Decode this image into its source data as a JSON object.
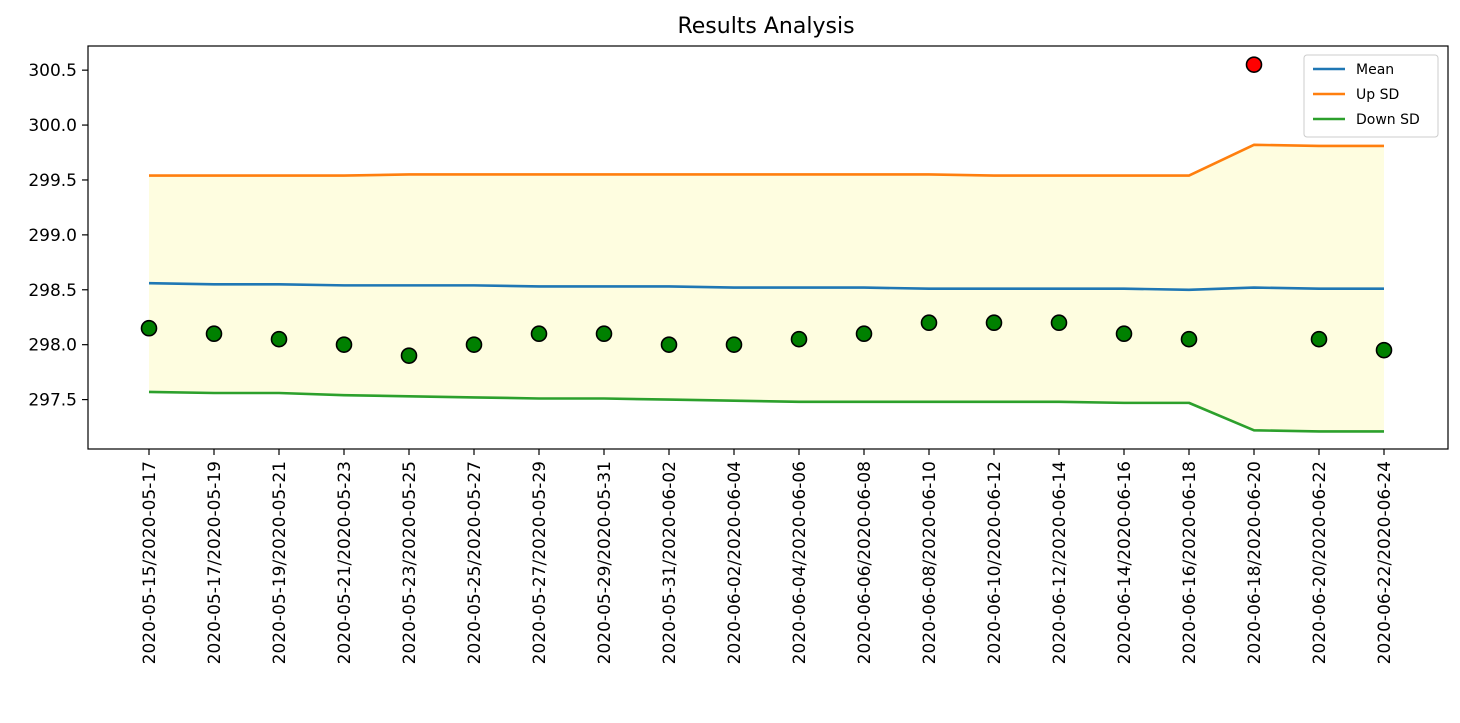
{
  "chart_data": {
    "type": "line",
    "title": "Results Analysis",
    "xlabel": "",
    "ylabel": "",
    "ylim": [
      297.05,
      300.72
    ],
    "yticks": [
      297.5,
      298.0,
      298.5,
      299.0,
      299.5,
      300.0,
      300.5
    ],
    "ytick_labels": [
      "297.5",
      "298.0",
      "298.5",
      "299.0",
      "299.5",
      "300.0",
      "300.5"
    ],
    "categories": [
      "2020-05-15/2020-05-17",
      "2020-05-17/2020-05-19",
      "2020-05-19/2020-05-21",
      "2020-05-21/2020-05-23",
      "2020-05-23/2020-05-25",
      "2020-05-25/2020-05-27",
      "2020-05-27/2020-05-29",
      "2020-05-29/2020-05-31",
      "2020-05-31/2020-06-02",
      "2020-06-02/2020-06-04",
      "2020-06-04/2020-06-06",
      "2020-06-06/2020-06-08",
      "2020-06-08/2020-06-10",
      "2020-06-10/2020-06-12",
      "2020-06-12/2020-06-14",
      "2020-06-14/2020-06-16",
      "2020-06-16/2020-06-18",
      "2020-06-18/2020-06-20",
      "2020-06-20/2020-06-22",
      "2020-06-22/2020-06-24"
    ],
    "series": [
      {
        "name": "Mean",
        "color": "#1f77b4",
        "values": [
          298.56,
          298.55,
          298.55,
          298.54,
          298.54,
          298.54,
          298.53,
          298.53,
          298.53,
          298.52,
          298.52,
          298.52,
          298.51,
          298.51,
          298.51,
          298.51,
          298.5,
          298.52,
          298.51,
          298.51
        ]
      },
      {
        "name": "Up SD",
        "color": "#ff7f0e",
        "values": [
          299.54,
          299.54,
          299.54,
          299.54,
          299.55,
          299.55,
          299.55,
          299.55,
          299.55,
          299.55,
          299.55,
          299.55,
          299.55,
          299.54,
          299.54,
          299.54,
          299.54,
          299.82,
          299.81,
          299.81
        ]
      },
      {
        "name": "Down SD",
        "color": "#2ca02c",
        "values": [
          297.57,
          297.56,
          297.56,
          297.54,
          297.53,
          297.52,
          297.51,
          297.51,
          297.5,
          297.49,
          297.48,
          297.48,
          297.48,
          297.48,
          297.48,
          297.47,
          297.47,
          297.22,
          297.21,
          297.21
        ]
      }
    ],
    "observations": [
      {
        "x": "2020-05-15/2020-05-17",
        "y": 298.15,
        "status": "normal"
      },
      {
        "x": "2020-05-17/2020-05-19",
        "y": 298.1,
        "status": "normal"
      },
      {
        "x": "2020-05-19/2020-05-21",
        "y": 298.05,
        "status": "normal"
      },
      {
        "x": "2020-05-21/2020-05-23",
        "y": 298.0,
        "status": "normal"
      },
      {
        "x": "2020-05-23/2020-05-25",
        "y": 297.9,
        "status": "normal"
      },
      {
        "x": "2020-05-25/2020-05-27",
        "y": 298.0,
        "status": "normal"
      },
      {
        "x": "2020-05-27/2020-05-29",
        "y": 298.1,
        "status": "normal"
      },
      {
        "x": "2020-05-29/2020-05-31",
        "y": 298.1,
        "status": "normal"
      },
      {
        "x": "2020-05-31/2020-06-02",
        "y": 298.0,
        "status": "normal"
      },
      {
        "x": "2020-06-02/2020-06-04",
        "y": 298.0,
        "status": "normal"
      },
      {
        "x": "2020-06-04/2020-06-06",
        "y": 298.05,
        "status": "normal"
      },
      {
        "x": "2020-06-06/2020-06-08",
        "y": 298.1,
        "status": "normal"
      },
      {
        "x": "2020-06-08/2020-06-10",
        "y": 298.2,
        "status": "normal"
      },
      {
        "x": "2020-06-10/2020-06-12",
        "y": 298.2,
        "status": "normal"
      },
      {
        "x": "2020-06-12/2020-06-14",
        "y": 298.2,
        "status": "normal"
      },
      {
        "x": "2020-06-14/2020-06-16",
        "y": 298.1,
        "status": "normal"
      },
      {
        "x": "2020-06-16/2020-06-18",
        "y": 298.05,
        "status": "normal"
      },
      {
        "x": "2020-06-18/2020-06-20",
        "y": 300.55,
        "status": "outlier"
      },
      {
        "x": "2020-06-20/2020-06-22",
        "y": 298.05,
        "status": "normal"
      },
      {
        "x": "2020-06-22/2020-06-24",
        "y": 297.95,
        "status": "normal"
      }
    ],
    "band": {
      "between": [
        "Up SD",
        "Down SD"
      ],
      "color": "#fefde0"
    },
    "marker_colors": {
      "normal": "#008000",
      "outlier": "#ff0000",
      "edge": "#000000"
    },
    "legend": {
      "position": "top-right"
    },
    "grid": false
  }
}
